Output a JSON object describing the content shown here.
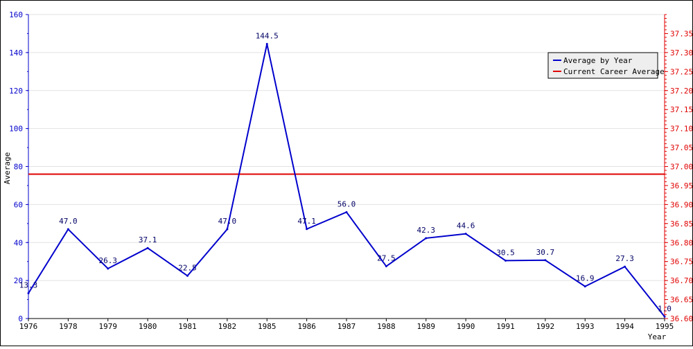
{
  "chart_data": {
    "type": "line",
    "xlabel": "Year",
    "ylabel": "Average",
    "categories": [
      "1976",
      "1978",
      "1979",
      "1980",
      "1981",
      "1982",
      "1985",
      "1986",
      "1987",
      "1988",
      "1989",
      "1990",
      "1991",
      "1992",
      "1993",
      "1994",
      "1995"
    ],
    "series": [
      {
        "name": "Average by Year",
        "color": "#0000cc",
        "axis": "left",
        "values": [
          13.3,
          47.0,
          26.3,
          37.1,
          22.5,
          47.0,
          144.5,
          47.1,
          56.0,
          27.5,
          42.3,
          44.6,
          30.5,
          30.7,
          16.9,
          27.3,
          1.0
        ],
        "labels": [
          "13.3",
          "47.0",
          "26.3",
          "37.1",
          "22.5",
          "47.0",
          "144.5",
          "47.1",
          "56.0",
          "27.5",
          "42.3",
          "44.6",
          "30.5",
          "30.7",
          "16.9",
          "27.3",
          "1.0"
        ]
      },
      {
        "name": "Current Career Average",
        "color": "#e00000",
        "axis": "right",
        "value": 36.98
      }
    ],
    "ylim": [
      0,
      160
    ],
    "yticks": [
      "0",
      "20",
      "40",
      "60",
      "80",
      "100",
      "120",
      "140",
      "160"
    ],
    "y2lim": [
      36.6,
      37.4
    ],
    "y2ticks": [
      "36.60",
      "36.65",
      "36.70",
      "36.75",
      "36.80",
      "36.85",
      "36.90",
      "36.95",
      "37.00",
      "37.05",
      "37.10",
      "37.15",
      "37.20",
      "37.25",
      "37.30",
      "37.35"
    ],
    "grid": true,
    "legend_position": "top-right"
  }
}
